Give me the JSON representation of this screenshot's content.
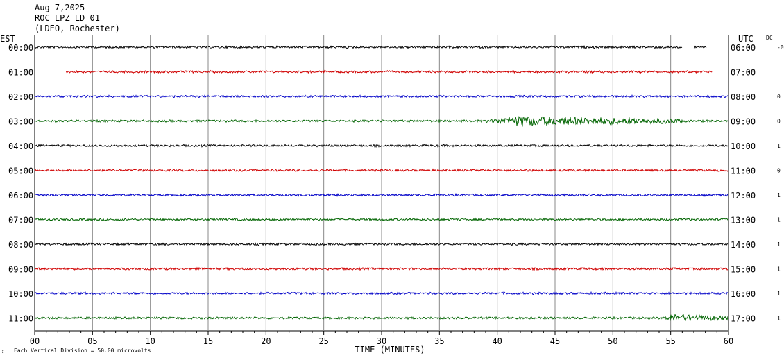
{
  "header": {
    "date": "Aug 7,2025",
    "station": "ROC LPZ LD 01",
    "network": "(LDEO, Rochester)"
  },
  "left_tz": "EST",
  "right_tz": "UTC",
  "dc_label": "DC",
  "footer_note": "Each Vertical Division =   50.00 microvolts",
  "chart_data": {
    "type": "line",
    "title": "",
    "xlabel": "TIME (MINUTES)",
    "xlim": [
      0,
      60
    ],
    "x_ticks": [
      "00",
      "05",
      "10",
      "15",
      "20",
      "25",
      "30",
      "35",
      "40",
      "45",
      "50",
      "55",
      "60"
    ],
    "vertical_division_microvolts": 50.0,
    "trace_colors": [
      "#000000",
      "#d00000",
      "#0000c8",
      "#006400"
    ],
    "rows": [
      {
        "est": "00:00",
        "utc": "06:00",
        "dc": "-0",
        "start_min": 0,
        "end_min": 58.1,
        "gap_start_min": 56.0,
        "gap_end_min": 57.0,
        "event": null
      },
      {
        "est": "01:00",
        "utc": "07:00",
        "dc": "",
        "start_min": 2.6,
        "end_min": 58.6,
        "gap_start_min": null,
        "gap_end_min": null,
        "event": null
      },
      {
        "est": "02:00",
        "utc": "08:00",
        "dc": "0",
        "start_min": 0,
        "end_min": 60,
        "gap_start_min": null,
        "gap_end_min": null,
        "event": null
      },
      {
        "est": "03:00",
        "utc": "09:00",
        "dc": "0",
        "start_min": 0,
        "end_min": 60,
        "gap_start_min": null,
        "gap_end_min": null,
        "event": {
          "start_min": 39.0,
          "end_min": 56.0,
          "peak_min": 41.5,
          "amp": 6
        }
      },
      {
        "est": "04:00",
        "utc": "10:00",
        "dc": "1",
        "start_min": 0,
        "end_min": 60,
        "gap_start_min": null,
        "gap_end_min": null,
        "event": null
      },
      {
        "est": "05:00",
        "utc": "11:00",
        "dc": "0",
        "start_min": 0,
        "end_min": 60,
        "gap_start_min": null,
        "gap_end_min": null,
        "event": null
      },
      {
        "est": "06:00",
        "utc": "12:00",
        "dc": "1",
        "start_min": 0,
        "end_min": 60,
        "gap_start_min": null,
        "gap_end_min": null,
        "event": null
      },
      {
        "est": "07:00",
        "utc": "13:00",
        "dc": "1",
        "start_min": 0,
        "end_min": 60,
        "gap_start_min": null,
        "gap_end_min": null,
        "event": null
      },
      {
        "est": "08:00",
        "utc": "14:00",
        "dc": "1",
        "start_min": 0,
        "end_min": 60,
        "gap_start_min": null,
        "gap_end_min": null,
        "event": null
      },
      {
        "est": "09:00",
        "utc": "15:00",
        "dc": "1",
        "start_min": 0,
        "end_min": 60,
        "gap_start_min": null,
        "gap_end_min": null,
        "event": null
      },
      {
        "est": "10:00",
        "utc": "16:00",
        "dc": "1",
        "start_min": 0,
        "end_min": 60,
        "gap_start_min": null,
        "gap_end_min": null,
        "event": null
      },
      {
        "est": "11:00",
        "utc": "17:00",
        "dc": "1",
        "start_min": 0,
        "end_min": 60,
        "gap_start_min": null,
        "gap_end_min": null,
        "event": {
          "start_min": 54.3,
          "end_min": 60,
          "peak_min": 55.0,
          "amp": 4
        }
      }
    ]
  }
}
